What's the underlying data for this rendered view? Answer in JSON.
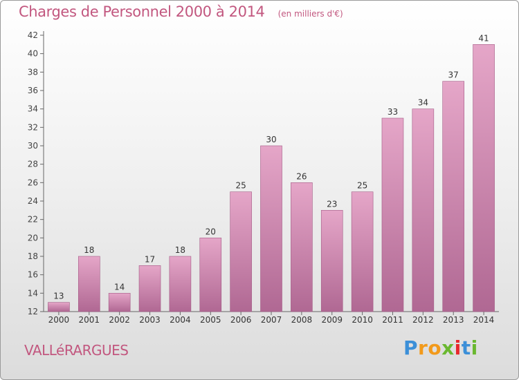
{
  "chart_data": {
    "type": "bar",
    "title": "Charges de Personnel 2000 à 2014",
    "subtitle": "(en milliers d'€)",
    "categories": [
      "2000",
      "2001",
      "2002",
      "2003",
      "2004",
      "2005",
      "2006",
      "2007",
      "2008",
      "2009",
      "2010",
      "2011",
      "2012",
      "2013",
      "2014"
    ],
    "values": [
      13,
      18,
      14,
      17,
      18,
      20,
      25,
      30,
      26,
      23,
      25,
      33,
      34,
      37,
      41
    ],
    "ylim": [
      12,
      42
    ],
    "yticks": [
      12,
      14,
      16,
      18,
      20,
      22,
      24,
      26,
      28,
      30,
      32,
      34,
      36,
      38,
      40,
      42
    ],
    "grid": false,
    "bar_color": "#c56f9a",
    "text_color": "#c2577f"
  },
  "commune": "VALLéRARGUES",
  "logo": {
    "letters": [
      "P",
      "r",
      "o",
      "x",
      "i",
      "t",
      "i"
    ],
    "colors": [
      "#3b8fd8",
      "#f29a1b",
      "#f29a1b",
      "#6ab82f",
      "#e8282d",
      "#3b8fd8",
      "#6ab82f"
    ]
  }
}
